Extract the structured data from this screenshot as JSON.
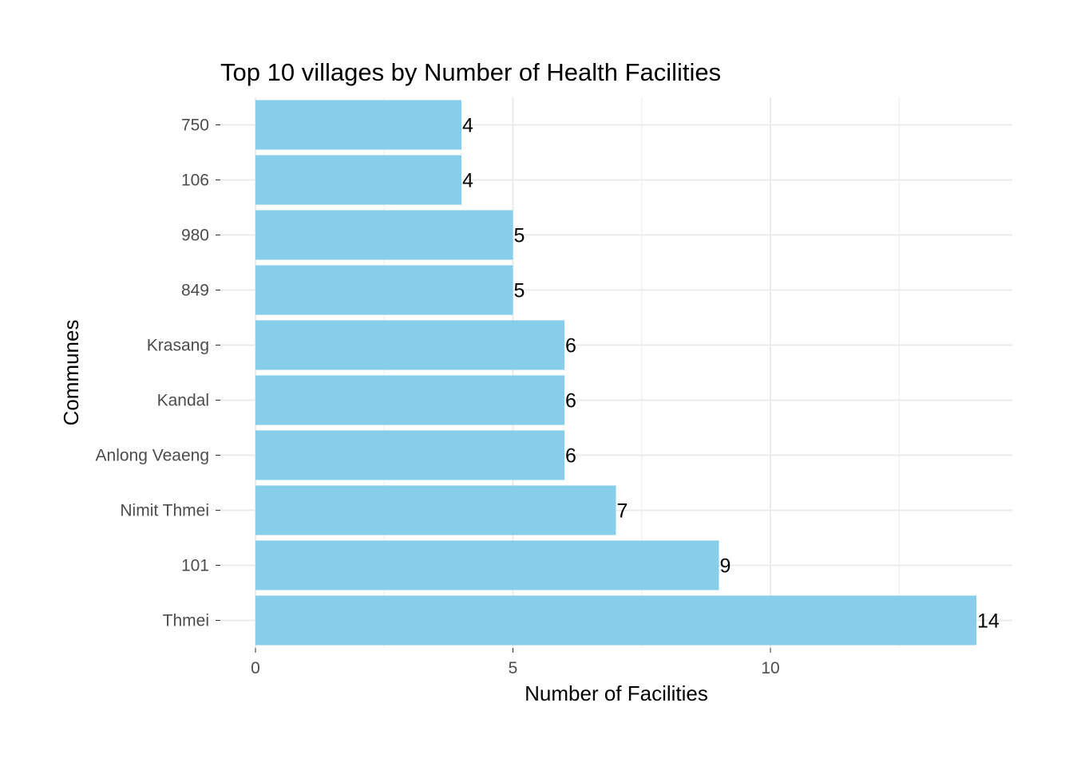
{
  "chart_data": {
    "type": "bar",
    "orientation": "horizontal",
    "title": "Top 10 villages by Number of Health Facilities",
    "xlabel": "Number of Facilities",
    "ylabel": "Communes",
    "categories": [
      "750",
      "106",
      "980",
      "849",
      "Krasang",
      "Kandal",
      "Anlong Veaeng",
      "Nimit Thmei",
      "101",
      "Thmei"
    ],
    "values": [
      4,
      4,
      5,
      5,
      6,
      6,
      6,
      7,
      9,
      14
    ],
    "xlim": [
      0,
      14.7
    ],
    "xticks": [
      0,
      5,
      10
    ],
    "grid": true,
    "legend": "none",
    "bar_color": "#87CEEB",
    "grid_color": "#EBEBEB"
  }
}
